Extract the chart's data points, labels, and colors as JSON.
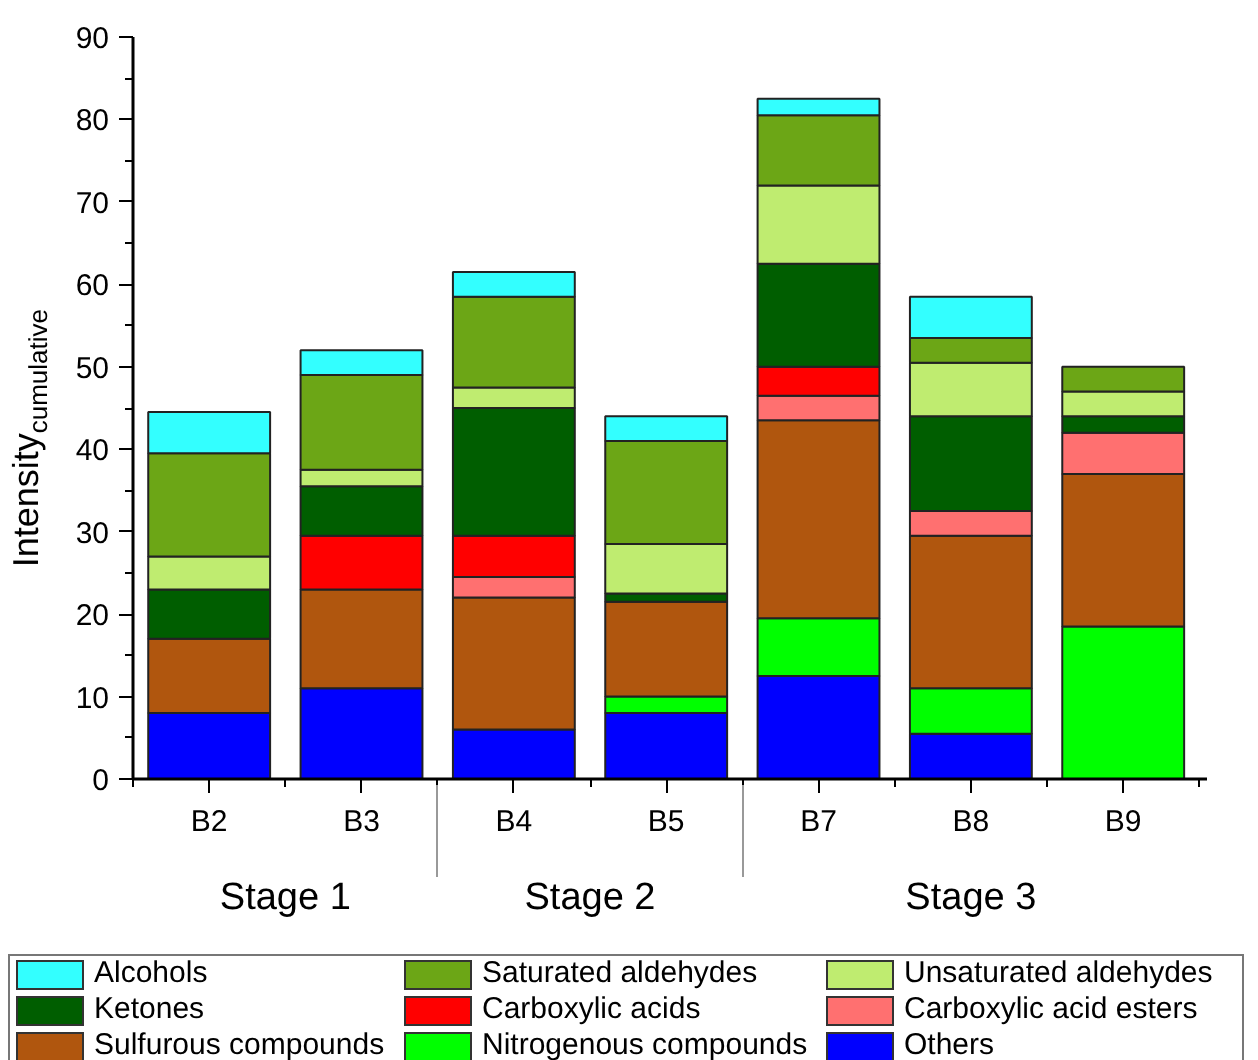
{
  "chart_data": {
    "type": "bar",
    "stacked": true,
    "ylabel": "Intensity$_{cumulative}$",
    "categories": [
      "B2",
      "B3",
      "B4",
      "B5",
      "B7",
      "B8",
      "B9"
    ],
    "series": [
      {
        "name": "Others",
        "color": "#0000ff",
        "values": [
          8,
          11,
          6,
          8,
          12.5,
          5.5,
          0
        ]
      },
      {
        "name": "Nitrogenous compounds",
        "color": "#00ff00",
        "values": [
          0,
          0,
          0,
          2,
          7,
          5.5,
          18.5
        ]
      },
      {
        "name": "Sulfurous compounds",
        "color": "#b0560e",
        "values": [
          9,
          12,
          16,
          11.5,
          24,
          18.5,
          18.5
        ]
      },
      {
        "name": "Carboxylic acid esters",
        "color": "#ff7070",
        "values": [
          0,
          0,
          2.5,
          0,
          3,
          3,
          5
        ]
      },
      {
        "name": "Carboxylic acids",
        "color": "#ff0000",
        "values": [
          0,
          6.5,
          5,
          0,
          3.5,
          0,
          0
        ]
      },
      {
        "name": "Ketones",
        "color": "#005e00",
        "values": [
          6,
          6,
          15.5,
          1,
          12.5,
          11.5,
          2
        ]
      },
      {
        "name": "Unsaturated aldehydes",
        "color": "#bfec70",
        "values": [
          4,
          2,
          2.5,
          6,
          9.5,
          6.5,
          3
        ]
      },
      {
        "name": "Saturated aldehydes",
        "color": "#6ca616",
        "values": [
          12.5,
          11.5,
          11,
          12.5,
          8.5,
          3,
          3
        ]
      },
      {
        "name": "Alcohols",
        "color": "#33ffff",
        "values": [
          5,
          3,
          3,
          3,
          2,
          5,
          0
        ]
      }
    ],
    "annotations": [
      "Stage 1",
      "Stage 2",
      "Stage 3"
    ],
    "ylim": [
      0,
      90
    ],
    "yticks": [
      0,
      10,
      20,
      30,
      40,
      50,
      60,
      70,
      80,
      90
    ],
    "grid": false,
    "legend": "bottom"
  }
}
